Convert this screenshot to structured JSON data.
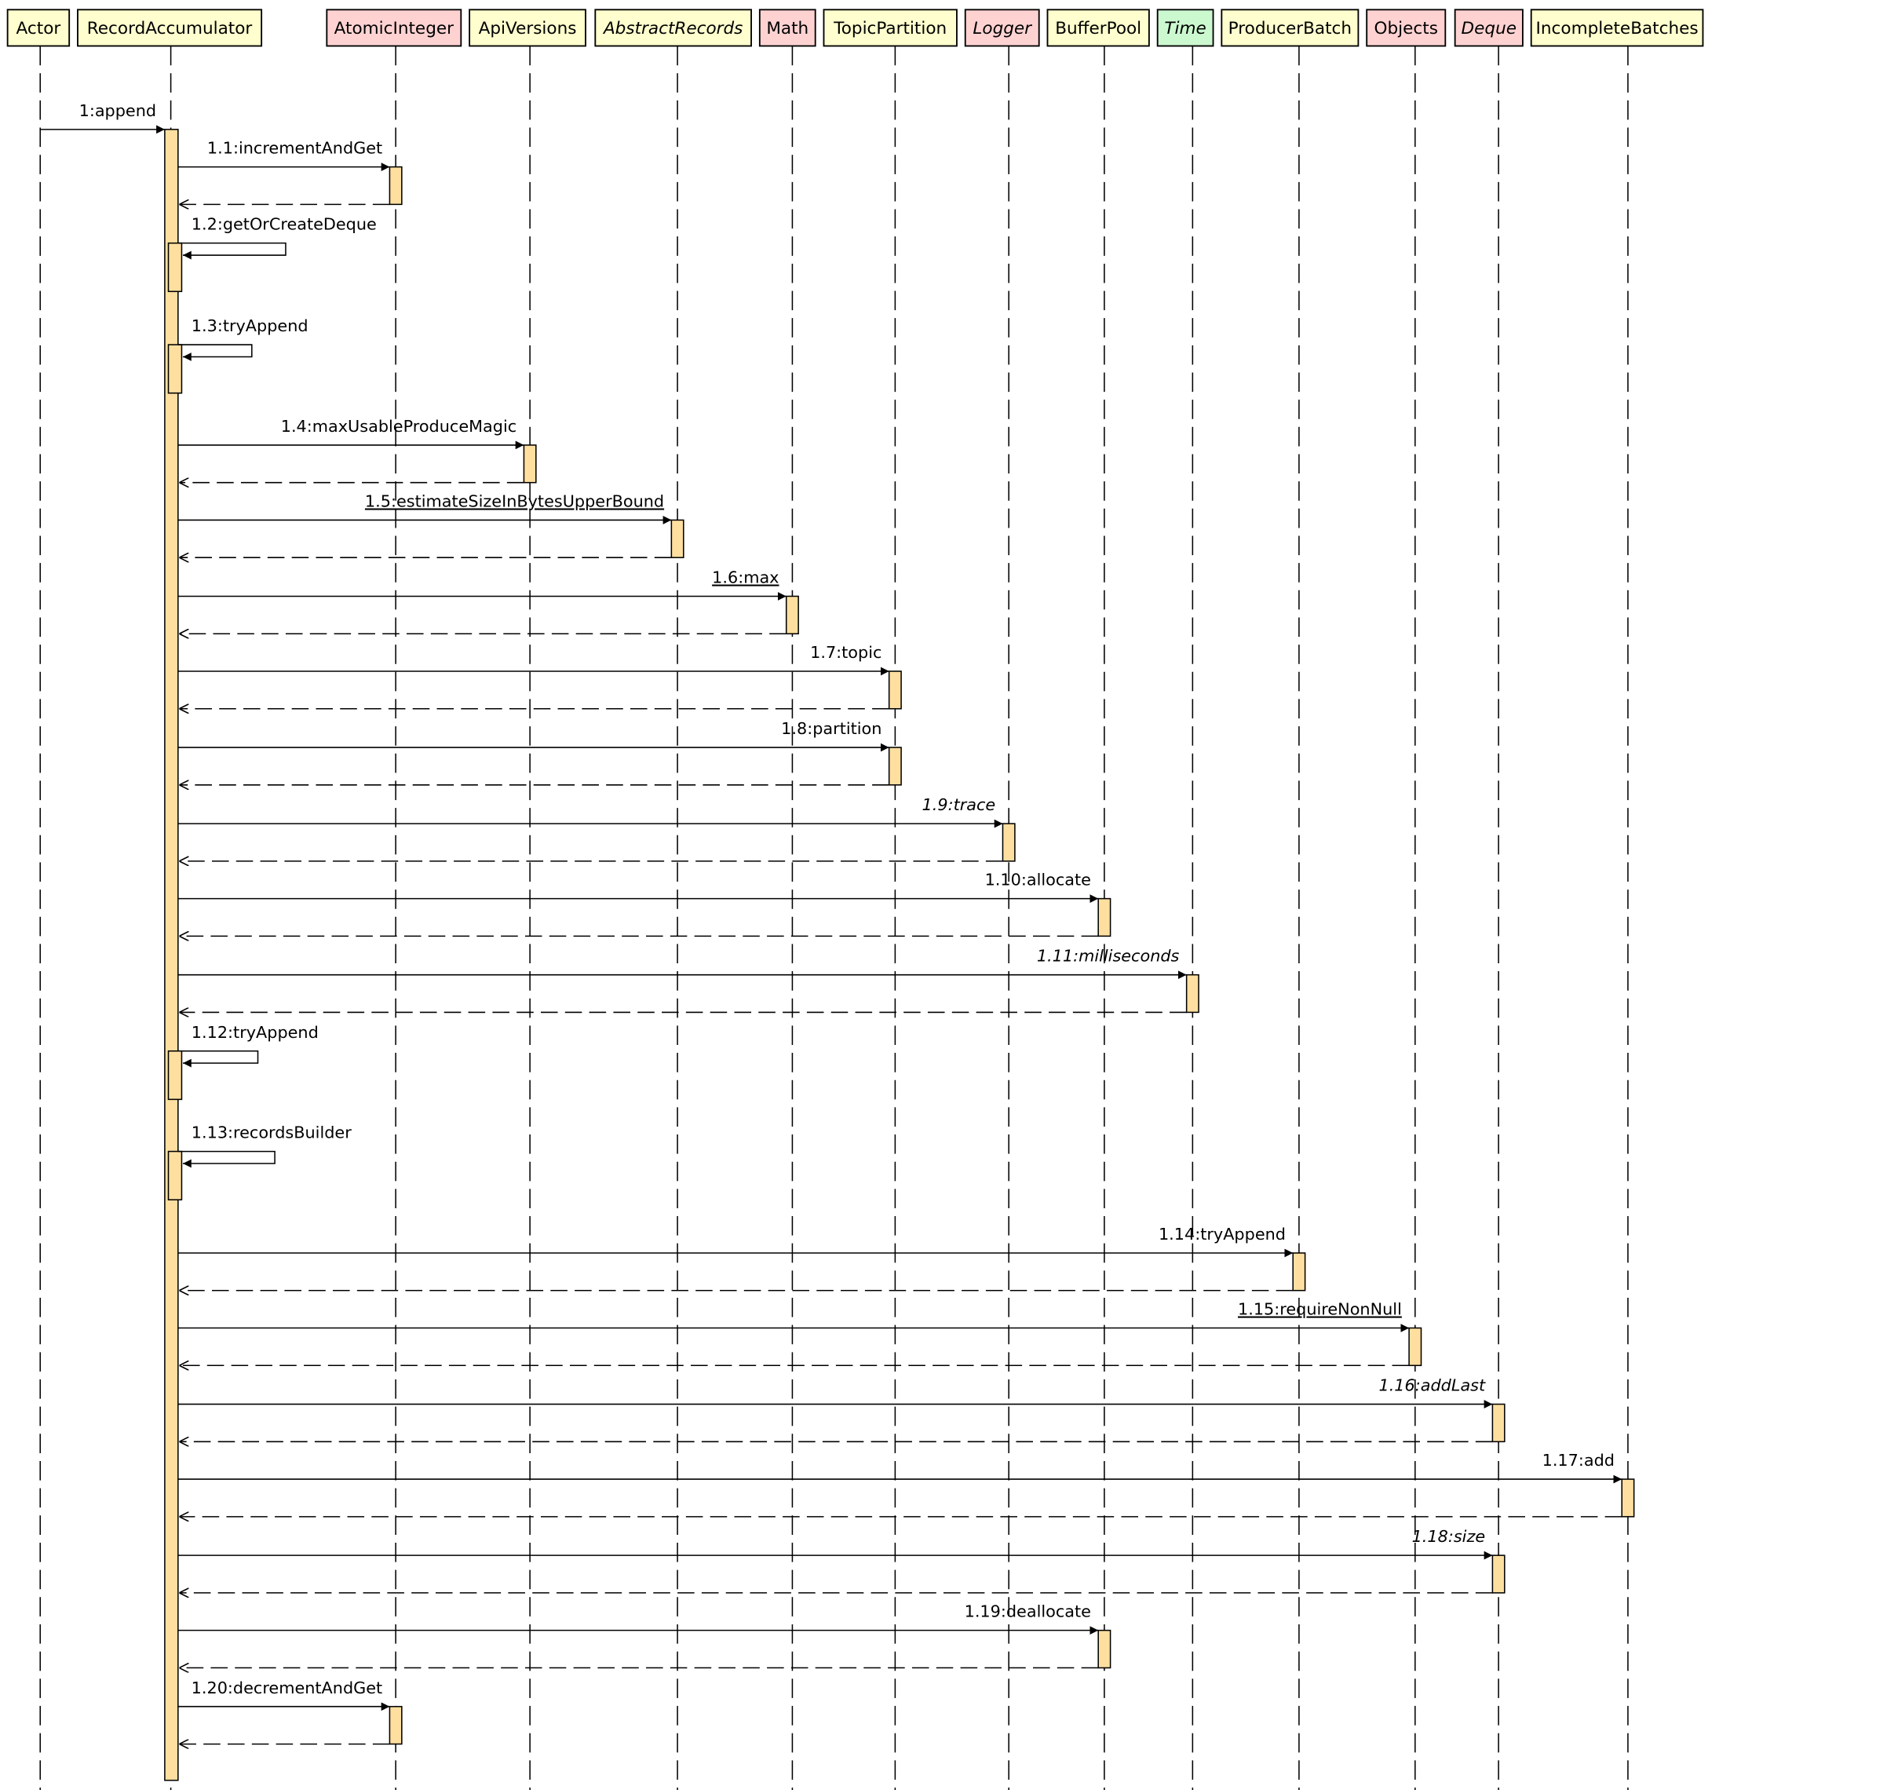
{
  "colors": {
    "participant_default": "#FEFECE",
    "participant_pink": "#FFD2D2",
    "participant_green": "#CCF8D0",
    "activation": "#FFDFA0",
    "line": "#000000"
  },
  "participants": [
    {
      "id": "Actor",
      "label": "Actor",
      "fill": "participant_default",
      "italic": false
    },
    {
      "id": "RecordAccumulator",
      "label": "RecordAccumulator",
      "fill": "participant_default",
      "italic": false
    },
    {
      "id": "AtomicInteger",
      "label": "AtomicInteger",
      "fill": "participant_pink",
      "italic": false
    },
    {
      "id": "ApiVersions",
      "label": "ApiVersions",
      "fill": "participant_default",
      "italic": false
    },
    {
      "id": "AbstractRecords",
      "label": "AbstractRecords",
      "fill": "participant_default",
      "italic": true
    },
    {
      "id": "Math",
      "label": "Math",
      "fill": "participant_pink",
      "italic": false
    },
    {
      "id": "TopicPartition",
      "label": "TopicPartition",
      "fill": "participant_default",
      "italic": false
    },
    {
      "id": "Logger",
      "label": "Logger",
      "fill": "participant_pink",
      "italic": true
    },
    {
      "id": "BufferPool",
      "label": "BufferPool",
      "fill": "participant_default",
      "italic": false
    },
    {
      "id": "Time",
      "label": "Time",
      "fill": "participant_green",
      "italic": true
    },
    {
      "id": "ProducerBatch",
      "label": "ProducerBatch",
      "fill": "participant_default",
      "italic": false
    },
    {
      "id": "Objects",
      "label": "Objects",
      "fill": "participant_pink",
      "italic": false
    },
    {
      "id": "Deque",
      "label": "Deque",
      "fill": "participant_pink",
      "italic": true
    },
    {
      "id": "IncompleteBatches",
      "label": "IncompleteBatches",
      "fill": "participant_default",
      "italic": false
    }
  ],
  "messages": [
    {
      "label": "1:append",
      "from": "Actor",
      "to": "RecordAccumulator",
      "kind": "call",
      "return": false,
      "italic": false,
      "underline": false
    },
    {
      "label": "1.1:incrementAndGet",
      "from": "RecordAccumulator",
      "to": "AtomicInteger",
      "kind": "call",
      "return": true,
      "italic": false,
      "underline": false
    },
    {
      "label": "1.2:getOrCreateDeque",
      "from": "RecordAccumulator",
      "to": "RecordAccumulator",
      "kind": "self",
      "italic": false,
      "underline": false
    },
    {
      "label": "1.3:tryAppend",
      "from": "RecordAccumulator",
      "to": "RecordAccumulator",
      "kind": "self",
      "italic": false,
      "underline": false
    },
    {
      "label": "1.4:maxUsableProduceMagic",
      "from": "RecordAccumulator",
      "to": "ApiVersions",
      "kind": "call",
      "return": true,
      "italic": false,
      "underline": false
    },
    {
      "label": "1.5:estimateSizeInBytesUpperBound",
      "from": "RecordAccumulator",
      "to": "AbstractRecords",
      "kind": "call",
      "return": true,
      "italic": false,
      "underline": true
    },
    {
      "label": "1.6:max",
      "from": "RecordAccumulator",
      "to": "Math",
      "kind": "call",
      "return": true,
      "italic": false,
      "underline": true
    },
    {
      "label": "1.7:topic",
      "from": "RecordAccumulator",
      "to": "TopicPartition",
      "kind": "call",
      "return": true,
      "italic": false,
      "underline": false
    },
    {
      "label": "1.8:partition",
      "from": "RecordAccumulator",
      "to": "TopicPartition",
      "kind": "call",
      "return": true,
      "italic": false,
      "underline": false
    },
    {
      "label": "1.9:trace",
      "from": "RecordAccumulator",
      "to": "Logger",
      "kind": "call",
      "return": true,
      "italic": true,
      "underline": false
    },
    {
      "label": "1.10:allocate",
      "from": "RecordAccumulator",
      "to": "BufferPool",
      "kind": "call",
      "return": true,
      "italic": false,
      "underline": false
    },
    {
      "label": "1.11:milliseconds",
      "from": "RecordAccumulator",
      "to": "Time",
      "kind": "call",
      "return": true,
      "italic": true,
      "underline": false
    },
    {
      "label": "1.12:tryAppend",
      "from": "RecordAccumulator",
      "to": "RecordAccumulator",
      "kind": "self",
      "italic": false,
      "underline": false
    },
    {
      "label": "1.13:recordsBuilder",
      "from": "RecordAccumulator",
      "to": "RecordAccumulator",
      "kind": "self",
      "italic": false,
      "underline": false
    },
    {
      "label": "1.14:tryAppend",
      "from": "RecordAccumulator",
      "to": "ProducerBatch",
      "kind": "call",
      "return": true,
      "italic": false,
      "underline": false
    },
    {
      "label": "1.15:requireNonNull",
      "from": "RecordAccumulator",
      "to": "Objects",
      "kind": "call",
      "return": true,
      "italic": false,
      "underline": true
    },
    {
      "label": "1.16:addLast",
      "from": "RecordAccumulator",
      "to": "Deque",
      "kind": "call",
      "return": true,
      "italic": true,
      "underline": false
    },
    {
      "label": "1.17:add",
      "from": "RecordAccumulator",
      "to": "IncompleteBatches",
      "kind": "call",
      "return": true,
      "italic": false,
      "underline": false
    },
    {
      "label": "1.18:size",
      "from": "RecordAccumulator",
      "to": "Deque",
      "kind": "call",
      "return": true,
      "italic": true,
      "underline": false
    },
    {
      "label": "1.19:deallocate",
      "from": "RecordAccumulator",
      "to": "BufferPool",
      "kind": "call",
      "return": true,
      "italic": false,
      "underline": false
    },
    {
      "label": "1.20:decrementAndGet",
      "from": "RecordAccumulator",
      "to": "AtomicInteger",
      "kind": "call",
      "return": true,
      "italic": false,
      "underline": false
    }
  ]
}
